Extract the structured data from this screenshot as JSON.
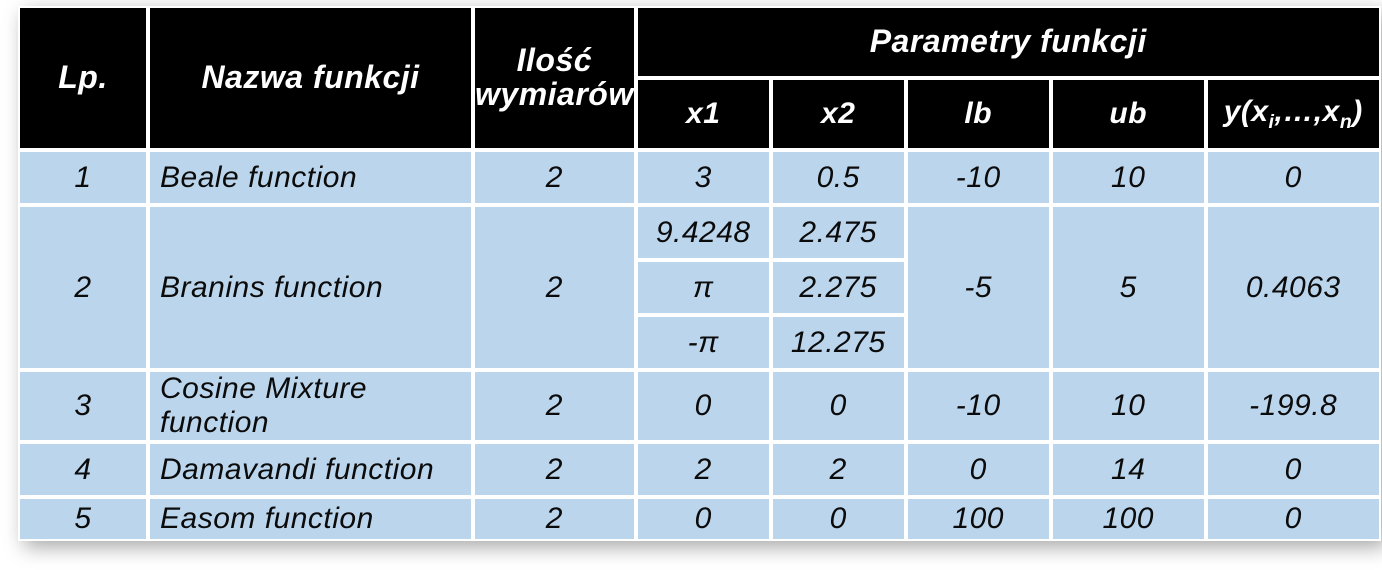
{
  "table": {
    "header": {
      "lp": "Lp.",
      "name": "Nazwa funkcji",
      "dims": "Ilość\nwymiarów",
      "params_group": "Parametry funkcji",
      "x1": "x1",
      "x2": "x2",
      "lb": "lb",
      "ub": "ub",
      "y_prefix": "y(x",
      "y_sub1": "i",
      "y_mid": ",…,x",
      "y_sub2": "n",
      "y_suffix": ")"
    },
    "rows": [
      {
        "lp": "1",
        "name": "Beale function",
        "dims": "2",
        "x1": [
          "3"
        ],
        "x2": [
          "0.5"
        ],
        "lb": "-10",
        "ub": "10",
        "y": "0"
      },
      {
        "lp": "2",
        "name": "Branins function",
        "dims": "2",
        "x1": [
          "9.4248",
          "π",
          "-π"
        ],
        "x2": [
          "2.475",
          "2.275",
          "12.275"
        ],
        "lb": "-5",
        "ub": "5",
        "y": "0.4063"
      },
      {
        "lp": "3",
        "name": "Cosine Mixture function",
        "dims": "2",
        "x1": [
          "0"
        ],
        "x2": [
          "0"
        ],
        "lb": "-10",
        "ub": "10",
        "y": "-199.8"
      },
      {
        "lp": "4",
        "name": "Damavandi function",
        "dims": "2",
        "x1": [
          "2"
        ],
        "x2": [
          "2"
        ],
        "lb": "0",
        "ub": "14",
        "y": "0"
      },
      {
        "lp": "5",
        "name": "Easom function",
        "dims": "2",
        "x1": [
          "0"
        ],
        "x2": [
          "0"
        ],
        "lb": "100",
        "ub": "100",
        "y": "0"
      }
    ]
  },
  "style": {
    "header_bg": "#000000",
    "header_fg": "#ffffff",
    "cell_bg": "#bbd5ec",
    "cell_fg": "#0b0b0b",
    "border_color": "#ffffff",
    "font_family": "Arial Narrow, Arial, sans-serif",
    "header_fontsize_pt": 24,
    "cell_fontsize_pt": 22,
    "italic": true,
    "shadow_color": "rgba(0,0,0,0.35)"
  }
}
